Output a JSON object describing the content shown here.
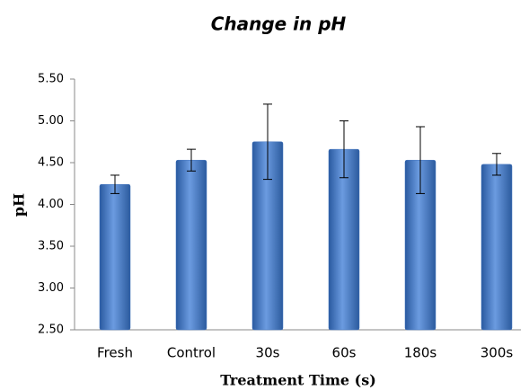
{
  "chart_data": {
    "type": "bar",
    "title": "Change in pH",
    "x_label": "Treatment Time (s)",
    "y_label": "pH",
    "categories": [
      "Fresh",
      "Control",
      "30s",
      "60s",
      "180s",
      "300s"
    ],
    "values": [
      4.24,
      4.53,
      4.75,
      4.66,
      4.53,
      4.48
    ],
    "errors": [
      0.11,
      0.13,
      0.45,
      0.34,
      0.4,
      0.13
    ],
    "color": "#3f72be",
    "ylim": [
      2.5,
      5.5
    ],
    "yticks": [
      {
        "value": 2.5,
        "label": "2.50"
      },
      {
        "value": 3,
        "label": "3.00"
      },
      {
        "value": 3.5,
        "label": "3.50"
      },
      {
        "value": 4,
        "label": "4.00"
      },
      {
        "value": 4.5,
        "label": "4.50"
      },
      {
        "value": 5,
        "label": "5.00"
      },
      {
        "value": 5.5,
        "label": "5.50"
      }
    ],
    "grid": false
  }
}
